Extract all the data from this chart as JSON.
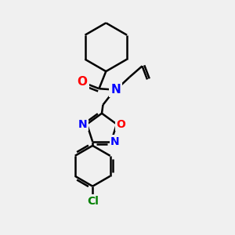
{
  "bg_color": "#f0f0f0",
  "bond_color": "#000000",
  "bond_width": 1.8,
  "atom_colors": {
    "O": "#ff0000",
    "N": "#0000ff",
    "Cl": "#008000"
  },
  "font_size": 10,
  "figsize": [
    3.0,
    3.0
  ],
  "dpi": 100
}
